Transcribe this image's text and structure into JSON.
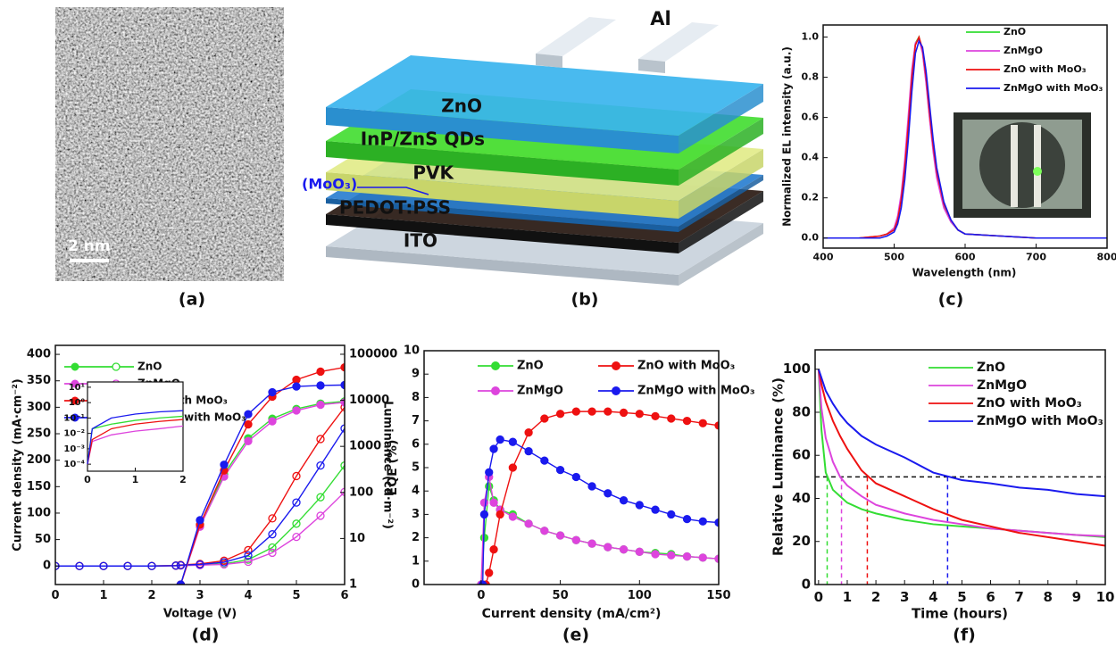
{
  "figure": {
    "panel_labels": [
      "(a)",
      "(b)",
      "(c)",
      "(d)",
      "(e)",
      "(f)"
    ],
    "image_a": {
      "scale_bar": "2 nm"
    },
    "diagram_b": {
      "electrode": "Al",
      "layers": [
        "ZnO",
        "InP/ZnS QDs",
        "PVK",
        "PEDOT:PSS",
        "ITO"
      ],
      "interlayer": "(MoO₃)"
    }
  },
  "chart_data": [
    {
      "type": "line",
      "xlabel": "Wavelength (nm)",
      "ylabel": "Normalized EL intensity (a.u.)",
      "x": [
        400,
        450,
        480,
        490,
        500,
        505,
        510,
        515,
        520,
        525,
        530,
        535,
        540,
        545,
        550,
        555,
        560,
        570,
        580,
        590,
        600,
        650,
        700,
        750,
        800
      ],
      "xlim": [
        400,
        800
      ],
      "xticks": [
        400,
        500,
        600,
        700,
        800
      ],
      "ylim": [
        -0.05,
        1.06
      ],
      "yticks": [
        {
          "value": 0,
          "label": "0.0"
        },
        0.2,
        0.4,
        0.6,
        0.8,
        {
          "value": 1,
          "label": "1.0"
        }
      ],
      "legend": "upper right",
      "series": [
        {
          "name": "ZnO",
          "color": "#33dd33",
          "values": [
            0,
            0,
            0.01,
            0.02,
            0.05,
            0.1,
            0.2,
            0.36,
            0.58,
            0.82,
            0.97,
            1,
            0.93,
            0.78,
            0.6,
            0.44,
            0.31,
            0.16,
            0.08,
            0.04,
            0.02,
            0.01,
            0,
            0,
            0
          ]
        },
        {
          "name": "ZnMgO",
          "color": "#dd44dd",
          "values": [
            0,
            0,
            0.01,
            0.02,
            0.05,
            0.11,
            0.22,
            0.39,
            0.61,
            0.84,
            0.97,
            0.99,
            0.92,
            0.77,
            0.59,
            0.43,
            0.3,
            0.15,
            0.08,
            0.04,
            0.02,
            0.01,
            0,
            0,
            0
          ]
        },
        {
          "name": "ZnO with MoO₃",
          "color": "#ee1111",
          "values": [
            0,
            0,
            0.01,
            0.02,
            0.04,
            0.09,
            0.19,
            0.35,
            0.56,
            0.8,
            0.96,
            1,
            0.94,
            0.8,
            0.62,
            0.46,
            0.33,
            0.17,
            0.09,
            0.04,
            0.02,
            0.01,
            0,
            0,
            0
          ]
        },
        {
          "name": "ZnMgO with MoO₃",
          "color": "#1a1aee",
          "values": [
            0,
            0,
            0,
            0.01,
            0.03,
            0.07,
            0.15,
            0.29,
            0.49,
            0.73,
            0.92,
            0.98,
            0.95,
            0.83,
            0.66,
            0.49,
            0.35,
            0.18,
            0.09,
            0.04,
            0.02,
            0.01,
            0,
            0,
            0
          ]
        }
      ]
    },
    {
      "type": "line",
      "xlabel": "Voltage (V)",
      "ylabel": "Current density (mA·cm⁻²)",
      "y2label": "Luminance (cd·m⁻²)",
      "x": [
        0,
        0.5,
        1,
        1.5,
        2,
        2.5,
        2.6,
        3,
        3.5,
        4,
        4.5,
        5,
        5.5,
        6
      ],
      "xlim": [
        0,
        6
      ],
      "xticks": [
        0,
        1,
        2,
        3,
        4,
        5,
        6
      ],
      "ylim": [
        -35,
        417
      ],
      "yticks": [
        0,
        50,
        100,
        150,
        200,
        250,
        300,
        350,
        400
      ],
      "y2lim": [
        1,
        156000
      ],
      "y2ticks": [
        1,
        10,
        100,
        1000,
        10000,
        100000
      ],
      "y2log": true,
      "legend": "upper left",
      "series": [
        {
          "name": "ZnO",
          "color": "#33dd33",
          "marker": "open",
          "values": [
            0,
            0,
            0,
            0,
            0,
            0.5,
            1,
            2,
            4,
            12,
            35,
            80,
            130,
            190
          ]
        },
        {
          "name": "ZnMgO",
          "color": "#dd44dd",
          "marker": "open",
          "values": [
            0,
            0,
            0,
            0,
            0,
            0.4,
            0.8,
            1.5,
            3,
            8,
            25,
            55,
            95,
            140
          ]
        },
        {
          "name": "ZnO with MoO₃",
          "color": "#ee1111",
          "marker": "open",
          "values": [
            0,
            0,
            0,
            0,
            0,
            1,
            2,
            4,
            10,
            30,
            90,
            170,
            240,
            300
          ]
        },
        {
          "name": "ZnMgO with MoO₃",
          "color": "#1a1aee",
          "marker": "open",
          "values": [
            0,
            0,
            0,
            0,
            0,
            0.8,
            1.5,
            3,
            7,
            20,
            60,
            120,
            190,
            260
          ]
        },
        {
          "color": "#33dd33",
          "marker": "filled",
          "axis": "y2",
          "values": [
            null,
            null,
            null,
            null,
            null,
            null,
            1,
            20,
            250,
            1500,
            4000,
            6500,
            8500,
            9500
          ]
        },
        {
          "color": "#dd44dd",
          "marker": "filled",
          "axis": "y2",
          "values": [
            null,
            null,
            null,
            null,
            null,
            null,
            1,
            18,
            220,
            1300,
            3500,
            6000,
            8000,
            9000
          ]
        },
        {
          "color": "#ee1111",
          "marker": "filled",
          "axis": "y2",
          "values": [
            null,
            null,
            null,
            null,
            null,
            null,
            1,
            20,
            300,
            3000,
            12000,
            28000,
            42000,
            52000
          ]
        },
        {
          "color": "#1a1aee",
          "marker": "filled",
          "axis": "y2",
          "values": [
            null,
            null,
            null,
            null,
            null,
            null,
            1,
            25,
            400,
            5000,
            15000,
            20000,
            21000,
            21500
          ]
        }
      ],
      "inset": {
        "x": [
          0,
          0.1,
          0.5,
          1,
          1.5,
          2
        ],
        "xlim": [
          0,
          2
        ],
        "xticks": [
          0,
          1,
          2
        ],
        "ylog": true,
        "ylim": [
          3.5e-05,
          22
        ],
        "yticks": [
          {
            "value": 0.0001,
            "label": "10⁻⁴"
          },
          {
            "value": 0.001,
            "label": "10⁻³"
          },
          {
            "value": 0.01,
            "label": "10⁻²"
          },
          {
            "value": 0.1,
            "label": "10⁻¹"
          },
          {
            "value": 1,
            "label": "10⁰"
          },
          {
            "value": 10,
            "label": "10¹"
          }
        ],
        "series": [
          {
            "color": "#33dd33",
            "values": [
              0.0001,
              0.02,
              0.04,
              0.07,
              0.1,
              0.13
            ]
          },
          {
            "color": "#dd44dd",
            "values": [
              0.0001,
              0.003,
              0.008,
              0.014,
              0.02,
              0.03
            ]
          },
          {
            "color": "#ee1111",
            "values": [
              0.0001,
              0.004,
              0.02,
              0.04,
              0.06,
              0.08
            ]
          },
          {
            "color": "#1a1aee",
            "values": [
              0.0001,
              0.02,
              0.1,
              0.18,
              0.25,
              0.3
            ]
          }
        ]
      }
    },
    {
      "type": "line",
      "xlabel": "Current density (mA/cm²)",
      "ylabel": "EQE (%)",
      "xlim": [
        -36,
        150
      ],
      "xticks": [
        0,
        50,
        100,
        150
      ],
      "ylim": [
        0,
        10
      ],
      "yticks": [
        0,
        1,
        2,
        3,
        4,
        5,
        6,
        7,
        8,
        9,
        10
      ],
      "legend": "upper center",
      "series": [
        {
          "name": "ZnO",
          "color": "#33dd33",
          "marker": "filled",
          "x": [
            0,
            2,
            5,
            8,
            12,
            20,
            30,
            40,
            50,
            60,
            70,
            80,
            90,
            100,
            110,
            120,
            130,
            140,
            150
          ],
          "values": [
            0,
            2,
            4.2,
            3.6,
            3.2,
            3,
            2.6,
            2.3,
            2.1,
            1.9,
            1.75,
            1.6,
            1.5,
            1.4,
            1.35,
            1.3,
            1.2,
            1.15,
            1.1
          ]
        },
        {
          "name": "ZnMgO",
          "color": "#dd44dd",
          "marker": "filled",
          "x": [
            0,
            2,
            5,
            8,
            12,
            20,
            30,
            40,
            50,
            60,
            70,
            80,
            90,
            100,
            110,
            120,
            130,
            140,
            150
          ],
          "values": [
            0,
            3.5,
            4.6,
            3.5,
            3.2,
            2.9,
            2.6,
            2.3,
            2.1,
            1.9,
            1.75,
            1.6,
            1.5,
            1.4,
            1.3,
            1.25,
            1.2,
            1.15,
            1.1
          ]
        },
        {
          "name": "ZnO with MoO₃",
          "color": "#ee1111",
          "marker": "filled",
          "x": [
            3,
            5,
            8,
            12,
            20,
            30,
            40,
            50,
            60,
            70,
            80,
            90,
            100,
            110,
            120,
            130,
            140,
            150
          ],
          "values": [
            0,
            0.5,
            1.5,
            3,
            5,
            6.5,
            7.1,
            7.3,
            7.4,
            7.4,
            7.4,
            7.35,
            7.3,
            7.2,
            7.1,
            7,
            6.9,
            6.8
          ]
        },
        {
          "name": "ZnMgO with MoO₃",
          "color": "#1a1aee",
          "marker": "filled",
          "x": [
            1,
            2,
            5,
            8,
            12,
            20,
            30,
            40,
            50,
            60,
            70,
            80,
            90,
            100,
            110,
            120,
            130,
            140,
            150
          ],
          "values": [
            0,
            3,
            4.8,
            5.8,
            6.2,
            6.1,
            5.7,
            5.3,
            4.9,
            4.6,
            4.2,
            3.9,
            3.6,
            3.4,
            3.2,
            3,
            2.8,
            2.7,
            2.65
          ]
        }
      ]
    },
    {
      "type": "line",
      "xlabel": "Time (hours)",
      "ylabel": "Relative Luminance (%)",
      "x": [
        0,
        0.1,
        0.25,
        0.5,
        0.75,
        1,
        1.5,
        2,
        3,
        4,
        5,
        6,
        7,
        8,
        9,
        10
      ],
      "xlim": [
        -0.12,
        10
      ],
      "xticks": [
        0,
        1,
        2,
        3,
        4,
        5,
        6,
        7,
        8,
        9,
        10
      ],
      "ylim": [
        0,
        109
      ],
      "yticks": [
        0,
        20,
        40,
        60,
        80,
        100
      ],
      "legend": "upper right",
      "reference_y": 50,
      "series": [
        {
          "name": "ZnO",
          "color": "#33dd33",
          "t50": 0.3,
          "values": [
            100,
            72,
            52,
            44,
            41,
            38,
            35,
            33,
            30,
            28,
            27,
            26,
            25,
            24,
            23,
            22
          ]
        },
        {
          "name": "ZnMgO",
          "color": "#dd44dd",
          "t50": 0.8,
          "values": [
            100,
            82,
            68,
            57,
            50,
            46,
            41,
            37,
            33,
            30,
            28,
            26,
            25,
            24,
            23,
            22.5
          ]
        },
        {
          "name": "ZnO with MoO₃",
          "color": "#ee1111",
          "t50": 1.7,
          "values": [
            100,
            93,
            85,
            76,
            69,
            63,
            53,
            47,
            41,
            35,
            30,
            27,
            24,
            22,
            20,
            18
          ]
        },
        {
          "name": "ZnMgO with MoO₃",
          "color": "#1a1aee",
          "t50": 4.5,
          "values": [
            100,
            96,
            90,
            84,
            79,
            75,
            69,
            65,
            59,
            52,
            48.5,
            47,
            45,
            44,
            42,
            41
          ]
        }
      ]
    }
  ]
}
